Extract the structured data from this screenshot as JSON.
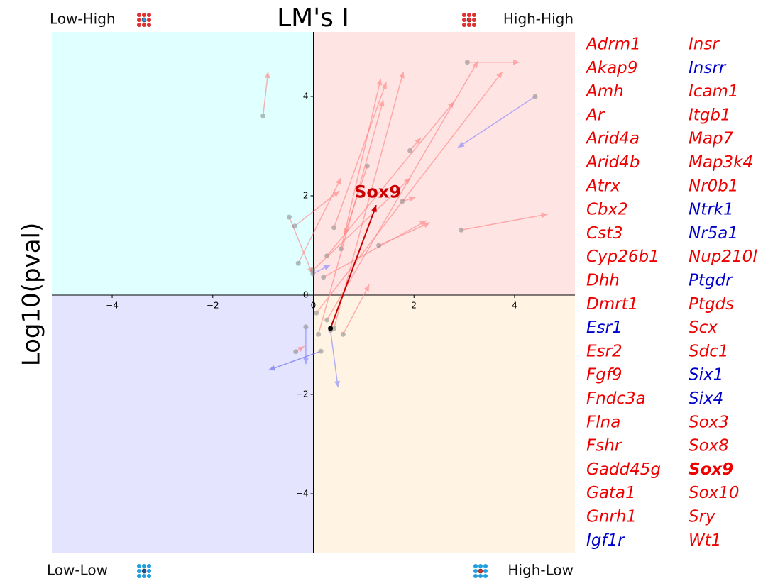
{
  "chart_data": {
    "type": "quiver",
    "title": "LM's I",
    "y_label": "Log10(pval)",
    "quadrants": {
      "top_left": "Low-High",
      "top_right": "High-High",
      "bottom_left": "Low-Low",
      "bottom_right": "High-Low"
    },
    "quadrant_colors": {
      "top_left": "#e0ffff",
      "top_right": "#ffe4e4",
      "bottom_left": "#e4e4ff",
      "bottom_right": "#fff4e4"
    },
    "xlim": [
      -5.2,
      5.2
    ],
    "ylim": [
      -5.2,
      5.3
    ],
    "xticks": [
      {
        "value": -4,
        "label": "−4"
      },
      {
        "value": -2,
        "label": "−2"
      },
      0,
      2,
      4
    ],
    "yticks": [
      {
        "value": -4,
        "label": "−4"
      },
      {
        "value": -2,
        "label": "−2"
      },
      0,
      2,
      4
    ],
    "arrows": [
      {
        "x0": -1.0,
        "y0": 3.61,
        "x1": -0.9,
        "y1": 4.5,
        "color": "#ff8080"
      },
      {
        "x0": 3.06,
        "y0": 4.69,
        "x1": 4.1,
        "y1": 4.69,
        "color": "#ff8080"
      },
      {
        "x0": 4.41,
        "y0": 4.0,
        "x1": 2.87,
        "y1": 2.97,
        "color": "#8080ff"
      },
      {
        "x0": 2.94,
        "y0": 1.31,
        "x1": 4.66,
        "y1": 1.63,
        "color": "#ff8080"
      },
      {
        "x0": 1.92,
        "y0": 2.91,
        "x1": 2.14,
        "y1": 3.17,
        "color": "#ff8080"
      },
      {
        "x0": 0.15,
        "y0": -1.13,
        "x1": -0.89,
        "y1": -1.51,
        "color": "#6060ee"
      },
      {
        "x0": 0.34,
        "y0": -0.71,
        "x1": 0.49,
        "y1": -1.86,
        "color": "#8080ff"
      },
      {
        "x0": -0.15,
        "y0": -0.64,
        "x1": -0.15,
        "y1": -1.39,
        "color": "#8080ff"
      },
      {
        "x0": -0.48,
        "y0": 1.57,
        "x1": -0.02,
        "y1": 0.43,
        "color": "#ff8080"
      },
      {
        "x0": 0.27,
        "y0": 0.79,
        "x1": 2.8,
        "y1": 3.9,
        "color": "#ff8080"
      },
      {
        "x0": 0.55,
        "y0": 0.93,
        "x1": 1.34,
        "y1": 4.36,
        "color": "#ff8080"
      },
      {
        "x0": 0.41,
        "y0": 1.36,
        "x1": 1.45,
        "y1": 4.29,
        "color": "#ff8080"
      },
      {
        "x0": 0.06,
        "y0": -0.36,
        "x1": 3.76,
        "y1": 4.5,
        "color": "#ff8080"
      },
      {
        "x0": 0.27,
        "y0": -0.5,
        "x1": 3.27,
        "y1": 4.71,
        "color": "#ff8080"
      },
      {
        "x0": 0.41,
        "y0": -0.67,
        "x1": 1.79,
        "y1": 4.5,
        "color": "#ff8080"
      },
      {
        "x0": -0.01,
        "y0": 0.5,
        "x1": 1.93,
        "y1": 2.36,
        "color": "#ff8080"
      },
      {
        "x0": -0.3,
        "y0": 0.64,
        "x1": 0.55,
        "y1": 2.36,
        "color": "#ff8080"
      },
      {
        "x0": 0.2,
        "y0": 0.36,
        "x1": 2.25,
        "y1": 1.5,
        "color": "#ff8080"
      },
      {
        "x0": 1.3,
        "y0": 1.0,
        "x1": 2.32,
        "y1": 1.46,
        "color": "#ff8080"
      },
      {
        "x0": 1.77,
        "y0": 1.89,
        "x1": 2.03,
        "y1": 1.97,
        "color": "#ff8080"
      },
      {
        "x0": 1.07,
        "y0": 2.6,
        "x1": 0.62,
        "y1": 1.21,
        "color": "#ff8080"
      },
      {
        "x0": -0.37,
        "y0": 1.39,
        "x1": 0.52,
        "y1": 2.1,
        "color": "#ff8080"
      },
      {
        "x0": 0.1,
        "y0": -0.79,
        "x1": 1.39,
        "y1": 3.93,
        "color": "#ff8080"
      },
      {
        "x0": -0.35,
        "y0": -1.14,
        "x1": -0.18,
        "y1": -1.03,
        "color": "#ff8080"
      },
      {
        "x0": -0.01,
        "y0": 0.43,
        "x1": 0.34,
        "y1": 0.61,
        "color": "#8080ff"
      },
      {
        "x0": 0.59,
        "y0": -0.79,
        "x1": 1.11,
        "y1": 0.21,
        "color": "#ff8080"
      },
      {
        "x0": 0.34,
        "y0": -0.67,
        "x1": 1.25,
        "y1": 1.81,
        "color": "#cc0000",
        "label": "Sox9"
      }
    ],
    "genes": [
      {
        "name": "Adrm1",
        "color": "#ee0000"
      },
      {
        "name": "Akap9",
        "color": "#ee0000"
      },
      {
        "name": "Amh",
        "color": "#ee0000"
      },
      {
        "name": "Ar",
        "color": "#ee0000"
      },
      {
        "name": "Arid4a",
        "color": "#ee0000"
      },
      {
        "name": "Arid4b",
        "color": "#ee0000"
      },
      {
        "name": "Atrx",
        "color": "#ee0000"
      },
      {
        "name": "Cbx2",
        "color": "#ee0000"
      },
      {
        "name": "Cst3",
        "color": "#ee0000"
      },
      {
        "name": "Cyp26b1",
        "color": "#ee0000"
      },
      {
        "name": "Dhh",
        "color": "#ee0000"
      },
      {
        "name": "Dmrt1",
        "color": "#ee0000"
      },
      {
        "name": "Esr1",
        "color": "#0000cc"
      },
      {
        "name": "Esr2",
        "color": "#ee0000"
      },
      {
        "name": "Fgf9",
        "color": "#ee0000"
      },
      {
        "name": "Fndc3a",
        "color": "#ee0000"
      },
      {
        "name": "Flna",
        "color": "#ee0000"
      },
      {
        "name": "Fshr",
        "color": "#ee0000"
      },
      {
        "name": "Gadd45g",
        "color": "#ee0000"
      },
      {
        "name": "Gata1",
        "color": "#ee0000"
      },
      {
        "name": "Gnrh1",
        "color": "#ee0000"
      },
      {
        "name": "Igf1r",
        "color": "#0000cc"
      },
      {
        "name": "Insr",
        "color": "#ee0000"
      },
      {
        "name": "Insrr",
        "color": "#0000cc"
      },
      {
        "name": "Icam1",
        "color": "#ee0000"
      },
      {
        "name": "Itgb1",
        "color": "#ee0000"
      },
      {
        "name": "Map7",
        "color": "#ee0000"
      },
      {
        "name": "Map3k4",
        "color": "#ee0000"
      },
      {
        "name": "Nr0b1",
        "color": "#ee0000"
      },
      {
        "name": "Ntrk1",
        "color": "#0000cc"
      },
      {
        "name": "Nr5a1",
        "color": "#0000cc"
      },
      {
        "name": "Nup210l",
        "color": "#ee0000"
      },
      {
        "name": "Ptgdr",
        "color": "#0000cc"
      },
      {
        "name": "Ptgds",
        "color": "#ee0000"
      },
      {
        "name": "Scx",
        "color": "#ee0000"
      },
      {
        "name": "Sdc1",
        "color": "#ee0000"
      },
      {
        "name": "Six1",
        "color": "#0000cc"
      },
      {
        "name": "Six4",
        "color": "#0000cc"
      },
      {
        "name": "Sox3",
        "color": "#ee0000"
      },
      {
        "name": "Sox8",
        "color": "#ee0000"
      },
      {
        "name": "Sox9",
        "color": "#ee0000",
        "bold": true
      },
      {
        "name": "Sox10",
        "color": "#ee0000"
      },
      {
        "name": "Sry",
        "color": "#ee0000"
      },
      {
        "name": "Wt1",
        "color": "#ee0000"
      }
    ]
  }
}
